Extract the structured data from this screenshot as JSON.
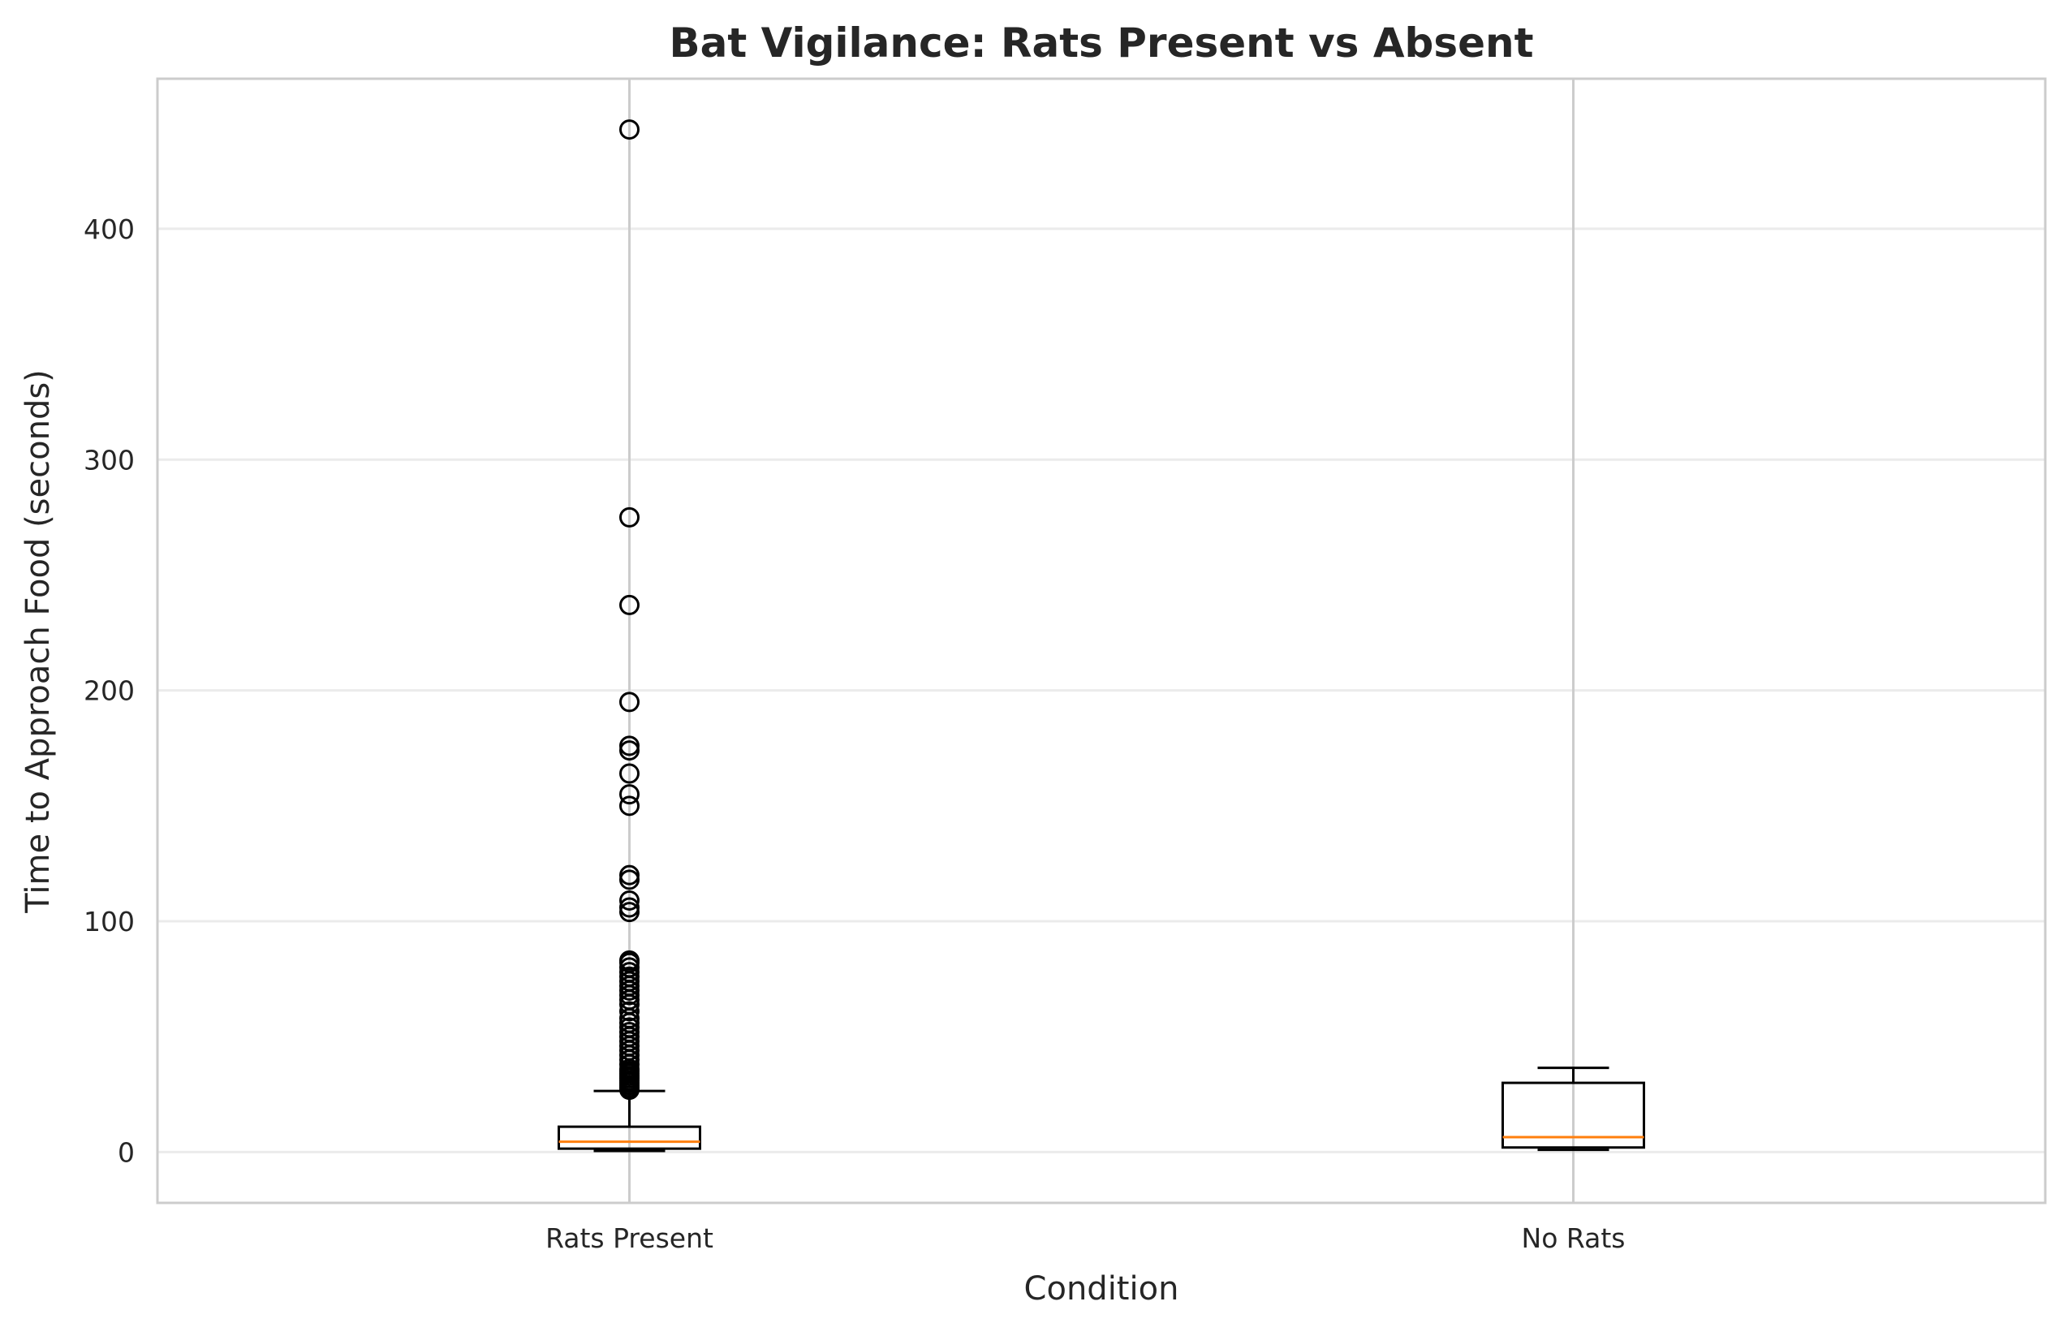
{
  "chart_data": {
    "type": "boxplot",
    "title": "Bat Vigilance: Rats Present vs Absent",
    "xlabel": "Condition",
    "ylabel": "Time to Approach Food (seconds)",
    "ylim": [
      -22,
      465
    ],
    "yticks": [
      0,
      100,
      200,
      300,
      400
    ],
    "grid": true,
    "colors": {
      "box": "#000000",
      "median": "#ff7f0e",
      "grid": "#ebebeb",
      "frame": "#cccccc",
      "xgrid": "#cccccc"
    },
    "categories": [
      "Rats Present",
      "No Rats"
    ],
    "boxes": [
      {
        "label": "Rats Present",
        "whisker_low": 0.5,
        "q1": 1.5,
        "median": 4.5,
        "q3": 11,
        "whisker_high": 26.5,
        "outliers": [
          443,
          275,
          237,
          195,
          176,
          174,
          164,
          155,
          150,
          120,
          118,
          109,
          106,
          104,
          83,
          82,
          80,
          78,
          76,
          74,
          72,
          70,
          68,
          66,
          64,
          61,
          58,
          56,
          54,
          52,
          50,
          48,
          46,
          44,
          42,
          40,
          38,
          36,
          35,
          34,
          33,
          32,
          31,
          30,
          29,
          28,
          27
        ]
      },
      {
        "label": "No Rats",
        "whisker_low": 1,
        "q1": 2,
        "median": 6.5,
        "q3": 30,
        "whisker_high": 36.5,
        "outliers": []
      }
    ]
  }
}
